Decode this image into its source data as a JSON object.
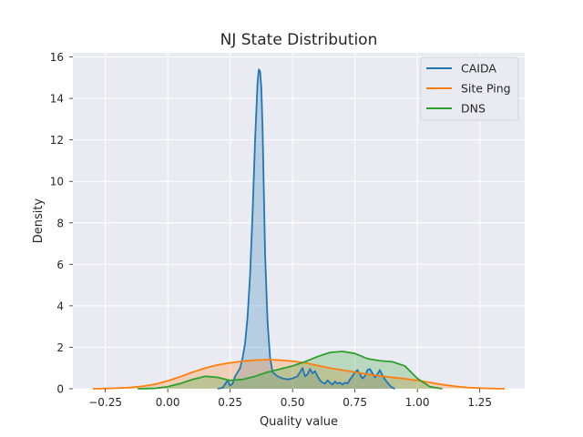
{
  "chart_data": {
    "type": "area",
    "title": "NJ State Distribution",
    "xlabel": "Quality value",
    "ylabel": "Density",
    "xlim": [
      -0.38,
      1.43
    ],
    "ylim": [
      0,
      16.2
    ],
    "xticks": [
      -0.25,
      0.0,
      0.25,
      0.5,
      0.75,
      1.0,
      1.25
    ],
    "xtick_labels": [
      "−0.25",
      "0.00",
      "0.25",
      "0.50",
      "0.75",
      "1.00",
      "1.25"
    ],
    "yticks": [
      0,
      2,
      4,
      6,
      8,
      10,
      12,
      14,
      16
    ],
    "ytick_labels": [
      "0",
      "2",
      "4",
      "6",
      "8",
      "10",
      "12",
      "14",
      "16"
    ],
    "grid": true,
    "background": "#eaeaf2",
    "legend_position": "top-right",
    "series": [
      {
        "name": "CAIDA",
        "color": "#1f77b4",
        "x": [
          0.2,
          0.22,
          0.24,
          0.25,
          0.26,
          0.27,
          0.28,
          0.29,
          0.3,
          0.31,
          0.32,
          0.33,
          0.34,
          0.35,
          0.36,
          0.365,
          0.37,
          0.375,
          0.38,
          0.385,
          0.39,
          0.4,
          0.41,
          0.42,
          0.44,
          0.46,
          0.48,
          0.5,
          0.52,
          0.53,
          0.54,
          0.55,
          0.56,
          0.57,
          0.58,
          0.59,
          0.6,
          0.61,
          0.62,
          0.63,
          0.64,
          0.65,
          0.66,
          0.67,
          0.68,
          0.69,
          0.7,
          0.71,
          0.72,
          0.73,
          0.74,
          0.75,
          0.76,
          0.77,
          0.78,
          0.79,
          0.8,
          0.81,
          0.82,
          0.83,
          0.84,
          0.85,
          0.86,
          0.87,
          0.88,
          0.89,
          0.9,
          0.91
        ],
        "y": [
          0.0,
          0.05,
          0.4,
          0.15,
          0.25,
          0.6,
          0.8,
          1.0,
          1.5,
          2.2,
          3.5,
          5.5,
          8.5,
          12.0,
          14.8,
          15.4,
          15.3,
          14.5,
          12.5,
          9.5,
          6.5,
          3.2,
          1.5,
          0.8,
          0.6,
          0.5,
          0.45,
          0.5,
          0.6,
          0.8,
          1.0,
          0.6,
          0.7,
          0.95,
          0.75,
          0.85,
          0.6,
          0.4,
          0.3,
          0.25,
          0.4,
          0.3,
          0.2,
          0.35,
          0.25,
          0.3,
          0.2,
          0.3,
          0.25,
          0.45,
          0.6,
          0.8,
          0.9,
          0.7,
          0.5,
          0.6,
          0.9,
          0.95,
          0.75,
          0.55,
          0.7,
          0.9,
          0.65,
          0.45,
          0.3,
          0.15,
          0.05,
          0.0
        ]
      },
      {
        "name": "Site Ping",
        "color": "#ff7f0e",
        "x": [
          -0.3,
          -0.25,
          -0.2,
          -0.15,
          -0.1,
          -0.05,
          0.0,
          0.05,
          0.1,
          0.15,
          0.2,
          0.25,
          0.3,
          0.35,
          0.4,
          0.45,
          0.5,
          0.55,
          0.6,
          0.65,
          0.7,
          0.75,
          0.8,
          0.85,
          0.9,
          0.95,
          1.0,
          1.05,
          1.1,
          1.15,
          1.2,
          1.25,
          1.3,
          1.35
        ],
        "y": [
          0.0,
          0.01,
          0.03,
          0.06,
          0.12,
          0.22,
          0.38,
          0.58,
          0.8,
          1.0,
          1.15,
          1.25,
          1.33,
          1.38,
          1.4,
          1.38,
          1.33,
          1.25,
          1.12,
          1.0,
          0.9,
          0.8,
          0.7,
          0.62,
          0.55,
          0.48,
          0.4,
          0.3,
          0.2,
          0.12,
          0.06,
          0.03,
          0.01,
          0.0
        ]
      },
      {
        "name": "DNS",
        "color": "#2ca02c",
        "x": [
          -0.12,
          -0.05,
          0.0,
          0.05,
          0.1,
          0.15,
          0.2,
          0.25,
          0.3,
          0.35,
          0.4,
          0.45,
          0.5,
          0.55,
          0.6,
          0.65,
          0.7,
          0.75,
          0.8,
          0.85,
          0.9,
          0.95,
          1.0,
          1.05,
          1.1
        ],
        "y": [
          0.0,
          0.02,
          0.1,
          0.25,
          0.45,
          0.6,
          0.55,
          0.4,
          0.45,
          0.6,
          0.8,
          0.95,
          1.1,
          1.3,
          1.55,
          1.75,
          1.8,
          1.7,
          1.45,
          1.35,
          1.3,
          1.1,
          0.5,
          0.1,
          0.0
        ]
      }
    ]
  }
}
